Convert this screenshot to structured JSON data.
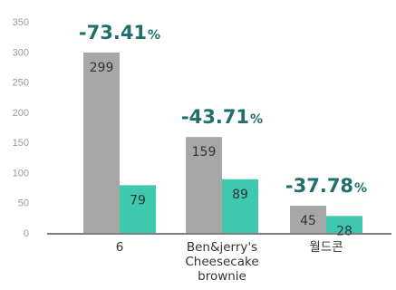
{
  "chart_data": {
    "type": "bar",
    "categories": [
      "6",
      "Ben&jerry's Cheesecake brownie",
      "월드콘"
    ],
    "category_lines": [
      [
        "6"
      ],
      [
        "Ben&jerry's",
        "Cheesecake",
        "brownie"
      ],
      [
        "월드콘"
      ]
    ],
    "series": [
      {
        "values": [
          299,
          159,
          45
        ],
        "color": "#a7a7a7"
      },
      {
        "values": [
          79,
          89,
          28
        ],
        "color": "#3ec8ad"
      }
    ],
    "changes": [
      {
        "value": "-73.41",
        "unit": "%"
      },
      {
        "value": "-43.71",
        "unit": "%"
      },
      {
        "value": "-37.78",
        "unit": "%"
      }
    ],
    "change_color": "#1f6f6a",
    "ylim": [
      0,
      350
    ],
    "yticks": [
      0,
      50,
      100,
      150,
      200,
      250,
      300,
      350
    ],
    "grid": false,
    "legend": "none",
    "title": "",
    "xlabel": "",
    "ylabel": ""
  }
}
